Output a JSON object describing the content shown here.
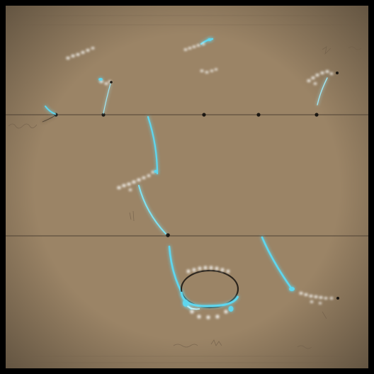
{
  "colors": {
    "frame": "#000000",
    "paper": "#9b8466",
    "paper_dark": "#8f795d",
    "line": "#5f4f3d",
    "ink": "#4c3f31",
    "glow": "#5fd6ee",
    "glow_bright": "#bff4ff",
    "node": "#1b1712",
    "scribble": "#6f5d48"
  },
  "scene": {
    "description_visible_text": ""
  }
}
